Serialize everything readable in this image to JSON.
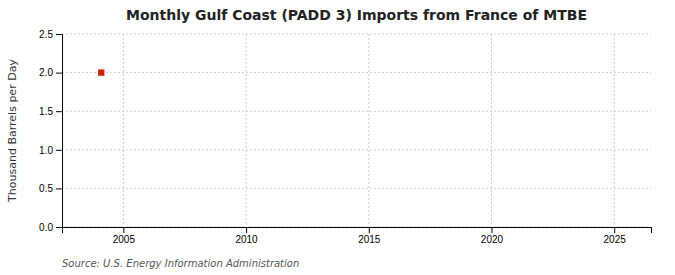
{
  "chart_data": {
    "type": "scatter",
    "title": "Monthly Gulf Coast (PADD 3) Imports from France of MTBE",
    "ylabel": "Thousand Barrels per Day",
    "source": "Source: U.S. Energy Information Administration",
    "x": [
      2004.1
    ],
    "values": [
      2.0
    ],
    "color": "#cc2200",
    "marker": "square",
    "xlim": [
      2002.5,
      2026.5
    ],
    "ylim": [
      0.0,
      2.5
    ],
    "xticks": [
      2005,
      2010,
      2015,
      2020,
      2025
    ],
    "yticks": [
      {
        "value": 0.0,
        "label": "0.0"
      },
      0.5,
      {
        "value": 1.0,
        "label": "1.0"
      },
      1.5,
      {
        "value": 2.0,
        "label": "2.0"
      },
      2.5
    ],
    "grid": true
  }
}
